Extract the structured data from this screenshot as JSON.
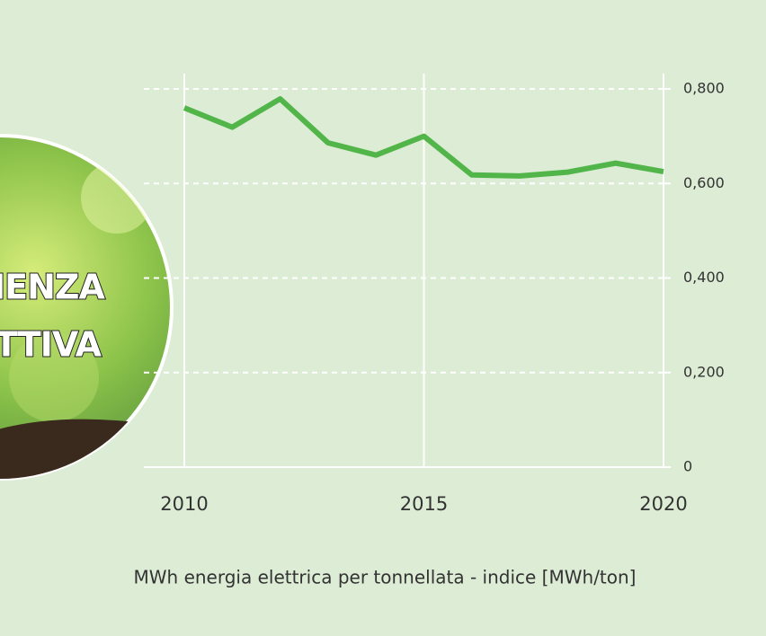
{
  "chart_data": {
    "type": "line",
    "x_label": "MWh energia elettrica per tonnellata - indice [MWh/ton]",
    "annotations": [
      "IENZA",
      "TTIVA"
    ],
    "x": [
      2010,
      2011,
      2012,
      2013,
      2014,
      2015,
      2016,
      2017,
      2018,
      2019,
      2020
    ],
    "series": [
      {
        "color": "#52b54a",
        "values": [
          0.76,
          0.719,
          0.779,
          0.686,
          0.66,
          0.7,
          0.618,
          0.616,
          0.624,
          0.643,
          0.625
        ]
      }
    ],
    "xlim": [
      2010,
      2020
    ],
    "xticks": [
      2010,
      2015,
      2020
    ],
    "ylim": [
      0,
      0.8
    ],
    "yticks": [
      0,
      {
        "value": 0.2,
        "label": "0,200"
      },
      {
        "value": 0.4,
        "label": "0,400"
      },
      {
        "value": 0.6,
        "label": "0,600"
      },
      {
        "value": 0.8,
        "label": "0,800"
      }
    ],
    "grid": true
  }
}
